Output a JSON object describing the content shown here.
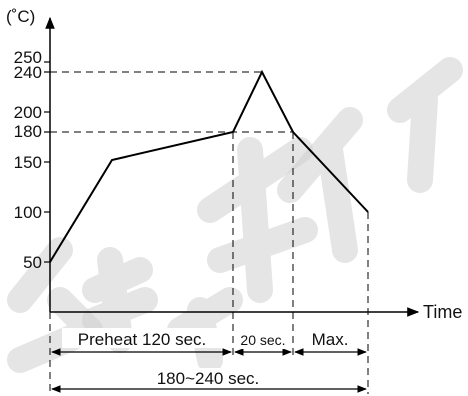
{
  "chart_data": {
    "type": "line",
    "title": "",
    "xlabel": "Time",
    "ylabel": "(˚C)",
    "y_ticks": [
      "50",
      "100",
      "150",
      "180",
      "200",
      "240",
      "250"
    ],
    "series": [
      {
        "x": [
          0,
          60,
          180,
          210,
          240,
          315
        ],
        "y": [
          50,
          150,
          180,
          240,
          180,
          100
        ]
      }
    ],
    "phases": {
      "preheat": "Preheat 120 sec.",
      "peak": "20 sec.",
      "cooling": "Max.",
      "total": "180~240 sec."
    }
  },
  "colors": {
    "line": "#000000",
    "background": "#ffffff",
    "watermark": "#cfcfcf"
  }
}
